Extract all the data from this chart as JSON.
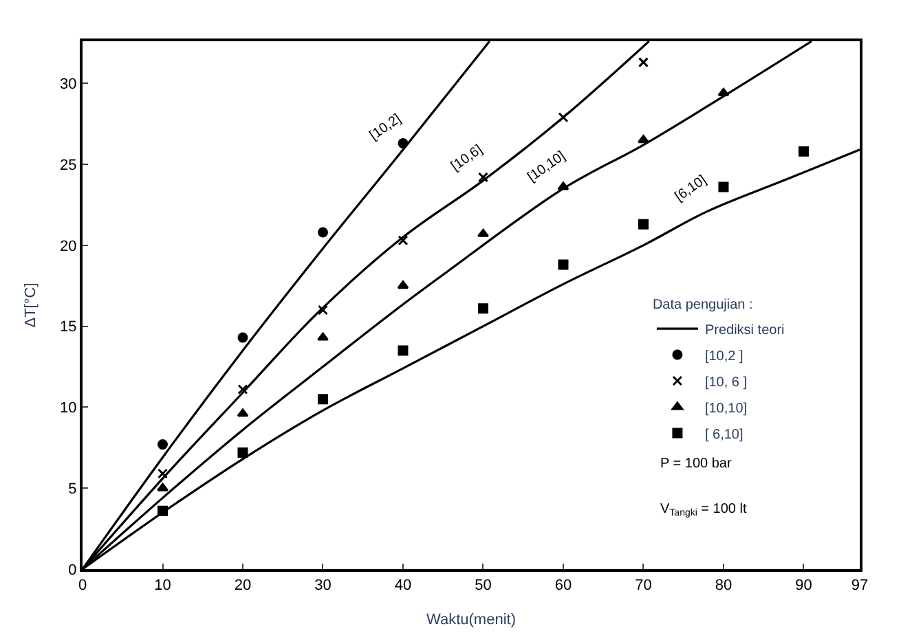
{
  "chart_data": {
    "type": "scatter",
    "xlabel": "Waktu(menit)",
    "ylabel": "ΔT[°C]",
    "xlim": [
      0,
      97
    ],
    "ylim": [
      0,
      32.6
    ],
    "xticks": [
      0,
      10,
      20,
      30,
      40,
      50,
      60,
      70,
      80,
      90,
      97
    ],
    "yticks": [
      0,
      5,
      10,
      15,
      20,
      25,
      30
    ],
    "legend": "bottom right",
    "legend_title": "Data pengujian :",
    "series": [
      {
        "type": "line",
        "name": "Prediksi teori",
        "color": "#000000",
        "line_style": "solid",
        "marker": "none",
        "x": [
          0,
          10,
          20,
          30,
          40,
          50.8
        ],
        "values": [
          0,
          6.9,
          13.5,
          19.8,
          25.9,
          32.6
        ]
      },
      {
        "type": "line",
        "color": "#000000",
        "line_style": "solid",
        "marker": "none",
        "x": [
          0,
          10,
          20,
          29.5,
          40,
          50,
          60,
          70.7
        ],
        "values": [
          0,
          5.6,
          10.9,
          15.9,
          20.5,
          24.0,
          27.9,
          32.6
        ]
      },
      {
        "type": "line",
        "color": "#000000",
        "line_style": "solid",
        "marker": "none",
        "x": [
          0,
          10,
          20,
          30,
          38.8,
          45.6,
          60,
          70,
          80,
          91
        ],
        "values": [
          0,
          4.4,
          8.6,
          12.5,
          15.9,
          18.4,
          23.5,
          26.2,
          29.2,
          32.6
        ]
      },
      {
        "type": "line",
        "color": "#000000",
        "line_style": "solid",
        "marker": "none",
        "x": [
          0,
          10,
          20,
          30,
          40,
          50,
          60,
          70,
          78,
          88,
          97
        ],
        "values": [
          0,
          3.5,
          6.8,
          9.8,
          12.4,
          15.0,
          17.6,
          20.0,
          22.1,
          24.1,
          25.9
        ]
      },
      {
        "name": "[10,2 ]",
        "color": "#000000",
        "marker": "circle",
        "x": [
          10,
          20,
          30,
          40
        ],
        "values": [
          7.7,
          14.3,
          20.8,
          26.3
        ]
      },
      {
        "name": "[10, 6 ]",
        "color": "#000000",
        "marker": "cross",
        "x": [
          10,
          20,
          30,
          40,
          50,
          60,
          70
        ],
        "values": [
          5.9,
          11.1,
          16.0,
          20.3,
          24.2,
          27.9,
          31.3
        ]
      },
      {
        "name": "[10,10]",
        "color": "#000000",
        "marker": "triangle",
        "x": [
          10,
          20,
          30,
          40,
          50,
          60,
          70,
          80
        ],
        "values": [
          5.0,
          9.6,
          14.3,
          17.5,
          20.7,
          23.6,
          26.5,
          29.4
        ]
      },
      {
        "name": "[ 6,10]",
        "color": "#000000",
        "marker": "square",
        "x": [
          10,
          20,
          30,
          40,
          50,
          60,
          70,
          80,
          90
        ],
        "values": [
          3.6,
          7.2,
          10.5,
          13.5,
          16.1,
          18.8,
          21.3,
          23.6,
          25.8
        ]
      }
    ],
    "annotations": [
      {
        "text": "[10,2]",
        "x": 40,
        "y": 25.9
      },
      {
        "text": "[10,6]",
        "x": 50,
        "y": 24.0
      },
      {
        "text": "[10,10]",
        "x": 60,
        "y": 23.5
      },
      {
        "text": "[6,10]",
        "x": 78,
        "y": 22.1
      },
      "P = 100 bar",
      "V$_{Tangki}$ = 100 lt"
    ]
  }
}
